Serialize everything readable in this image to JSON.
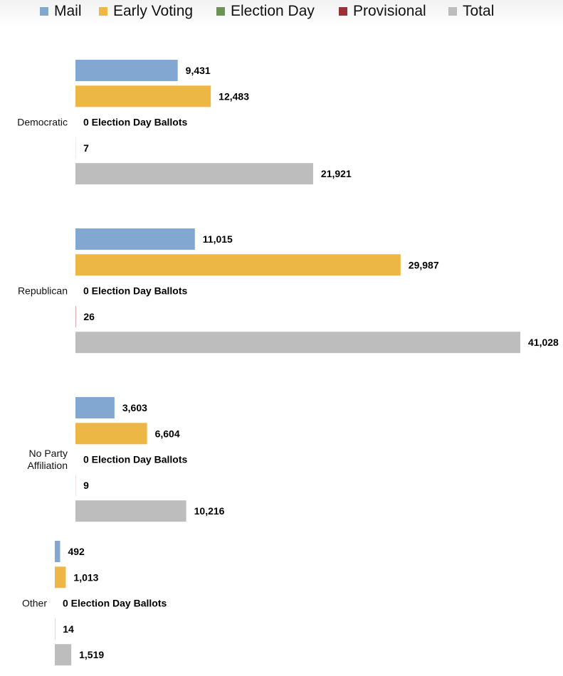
{
  "chart_data": {
    "type": "bar",
    "orientation": "horizontal",
    "title": "",
    "xlabel": "",
    "ylabel": "",
    "xlim": [
      0,
      41028
    ],
    "grid": false,
    "legend_position": "top",
    "categories": [
      "Democratic",
      "Republican",
      "No Party Affiliation",
      "Other"
    ],
    "category_label_lines": [
      [
        "Democratic"
      ],
      [
        "Republican"
      ],
      [
        "No Party",
        "Affiliation"
      ],
      [
        "Other"
      ]
    ],
    "series": [
      {
        "name": "Mail",
        "color": "#82a8d2",
        "values": [
          9431,
          11015,
          3603,
          492
        ],
        "labels": [
          "9,431",
          "11,015",
          "3,603",
          "492"
        ]
      },
      {
        "name": "Early Voting",
        "color": "#ecb744",
        "values": [
          12483,
          29987,
          6604,
          1013
        ],
        "labels": [
          "12,483",
          "29,987",
          "6,604",
          "1,013"
        ]
      },
      {
        "name": "Election Day",
        "color": "#6a9455",
        "values": [
          0,
          0,
          0,
          0
        ],
        "labels": [
          "0 Election Day Ballots",
          "0 Election Day Ballots",
          "0 Election Day Ballots",
          "0 Election Day Ballots"
        ]
      },
      {
        "name": "Provisional",
        "color": "#9b3136",
        "values": [
          7,
          26,
          9,
          14
        ],
        "labels": [
          "7",
          "26",
          "9",
          "14"
        ]
      },
      {
        "name": "Total",
        "color": "#bdbdbd",
        "values": [
          21921,
          41028,
          10216,
          1519
        ],
        "labels": [
          "21,921",
          "41,028",
          "10,216",
          "1,519"
        ]
      }
    ]
  }
}
